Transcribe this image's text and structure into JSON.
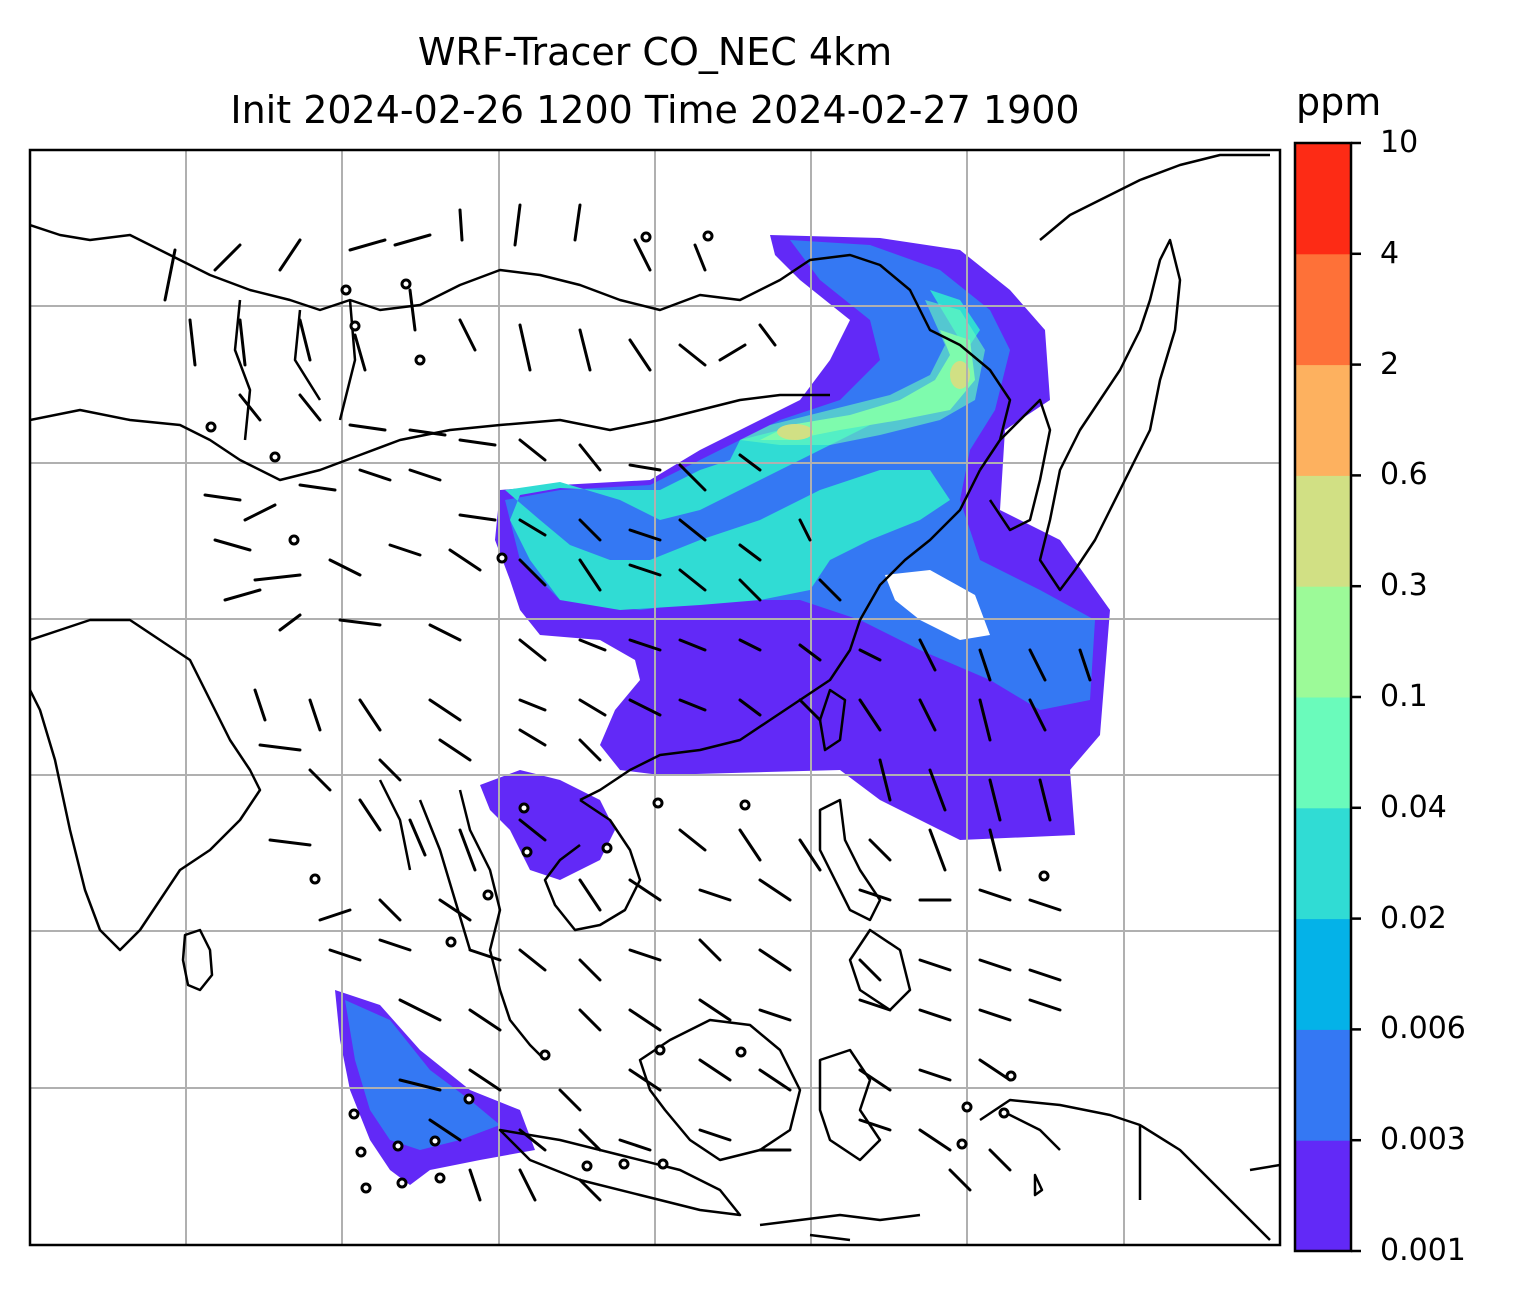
{
  "title": {
    "line1": "WRF-Tracer CO_NEC 4km",
    "line2": "Init 2024-02-26 1200 Time 2024-02-27 1900"
  },
  "colorbar": {
    "unit": "ppm",
    "levels": [
      "0.001",
      "0.003",
      "0.006",
      "0.02",
      "0.04",
      "0.1",
      "0.3",
      "0.6",
      "2",
      "4",
      "10"
    ],
    "colors": [
      "#6229f7",
      "#3478f3",
      "#04b2e8",
      "#30dcd4",
      "#6afbbb",
      "#9cfa98",
      "#d1e084",
      "#fdb15f",
      "#fe7138",
      "#fd2b15"
    ]
  },
  "map": {
    "field": "CO_NEC tracer concentration",
    "overlay": "wind barbs",
    "grid": true,
    "coastline_color": "#000000",
    "grid_color": "#b0b0b0"
  }
}
